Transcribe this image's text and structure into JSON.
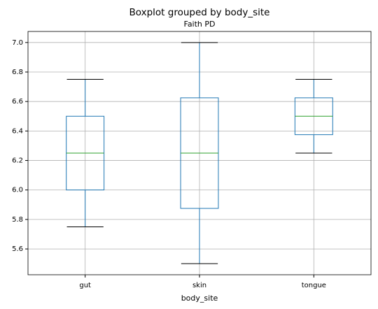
{
  "chart_data": {
    "type": "box",
    "title": "Boxplot grouped by body_site",
    "subtitle": "Faith PD",
    "xlabel": "body_site",
    "categories": [
      "gut",
      "skin",
      "tongue"
    ],
    "boxes": [
      {
        "whislo": 5.75,
        "q1": 6.0,
        "med": 6.25,
        "q3": 6.5,
        "whishi": 6.75
      },
      {
        "whislo": 5.5,
        "q1": 5.875,
        "med": 6.25,
        "q3": 6.625,
        "whishi": 7.0
      },
      {
        "whislo": 6.25,
        "q1": 6.375,
        "med": 6.5,
        "q3": 6.625,
        "whishi": 6.75
      }
    ],
    "box_color": "#1f77b4",
    "median_color": "#2ca02c",
    "cap_color": "#000000",
    "ylim": [
      5.425,
      7.075
    ],
    "yticks": [
      5.6,
      5.8,
      {
        "value": 6,
        "label": "6.0"
      },
      6.2,
      6.4,
      6.6,
      6.8,
      {
        "value": 7,
        "label": "7.0"
      }
    ],
    "grid": true
  }
}
